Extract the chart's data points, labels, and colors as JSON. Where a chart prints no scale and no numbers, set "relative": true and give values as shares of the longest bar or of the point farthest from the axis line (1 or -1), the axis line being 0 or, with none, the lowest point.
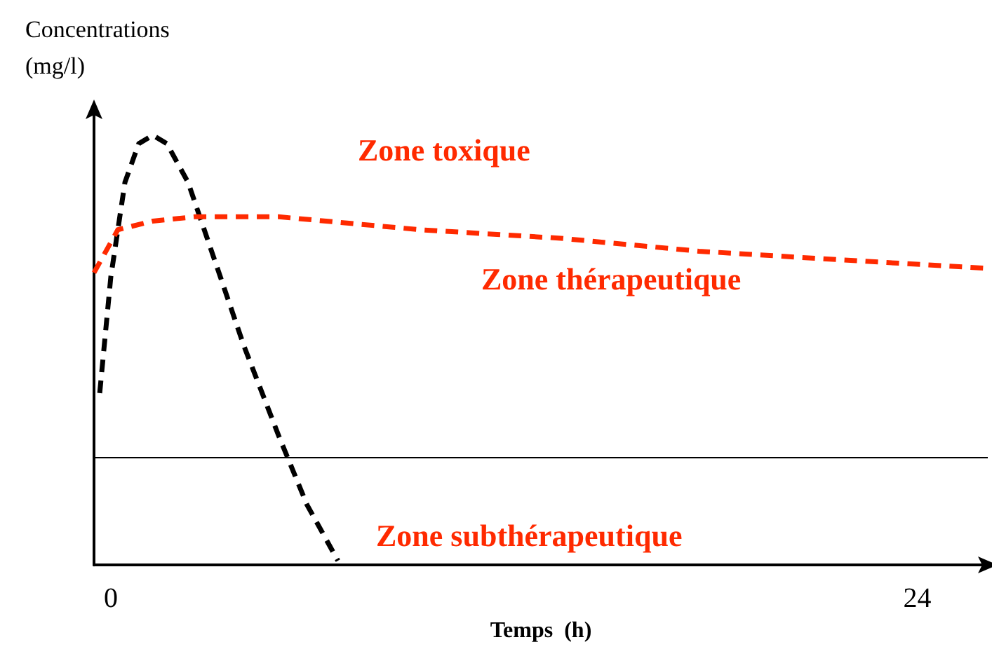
{
  "chart_data": {
    "type": "line",
    "relative": true,
    "xlabel": "Temps  (h)",
    "ylabel": "Concentrations (mg/l)",
    "xlim": [
      -0.5,
      26.1
    ],
    "xticks": [
      0,
      24
    ],
    "marker": "none",
    "series": [
      {
        "color": "#000000",
        "line_style": "dashed",
        "x": [
          -0.33,
          0,
          0.42,
          0.83,
          1.25,
          1.67,
          2.3,
          3.13,
          3.96,
          5.0,
          5.84,
          6.76
        ],
        "values": [
          0.4,
          0.67,
          0.89,
          0.98,
          1.0,
          0.98,
          0.89,
          0.7,
          0.51,
          0.3,
          0.14,
          0.01
        ]
      },
      {
        "color": "#ff2a00",
        "line_style": "dashed",
        "x": [
          -0.5,
          0.21,
          1.25,
          2.5,
          5.0,
          9.2,
          13.4,
          17.5,
          21.7,
          26.1
        ],
        "values": [
          0.68,
          0.78,
          0.8,
          0.81,
          0.81,
          0.78,
          0.76,
          0.73,
          0.71,
          0.69
        ]
      }
    ],
    "ref_lines": [
      {
        "axis": "y",
        "value": 0.25,
        "color": "#000000"
      }
    ],
    "annotations": [
      "Zone toxique",
      "Zone thérapeutique",
      "Zone subthérapeutique"
    ]
  }
}
